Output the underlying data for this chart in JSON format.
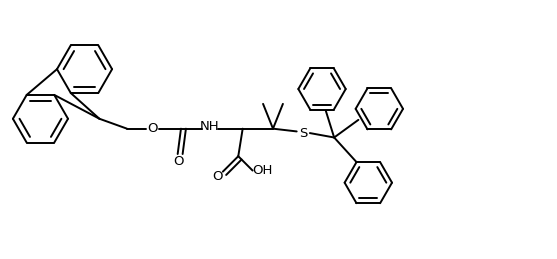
{
  "figure_width": 5.57,
  "figure_height": 2.59,
  "dpi": 100,
  "lw": 1.4,
  "bg": "#ffffff",
  "xlim": [
    0,
    10.0
  ],
  "ylim": [
    0,
    4.65
  ],
  "font_size": 9.5
}
